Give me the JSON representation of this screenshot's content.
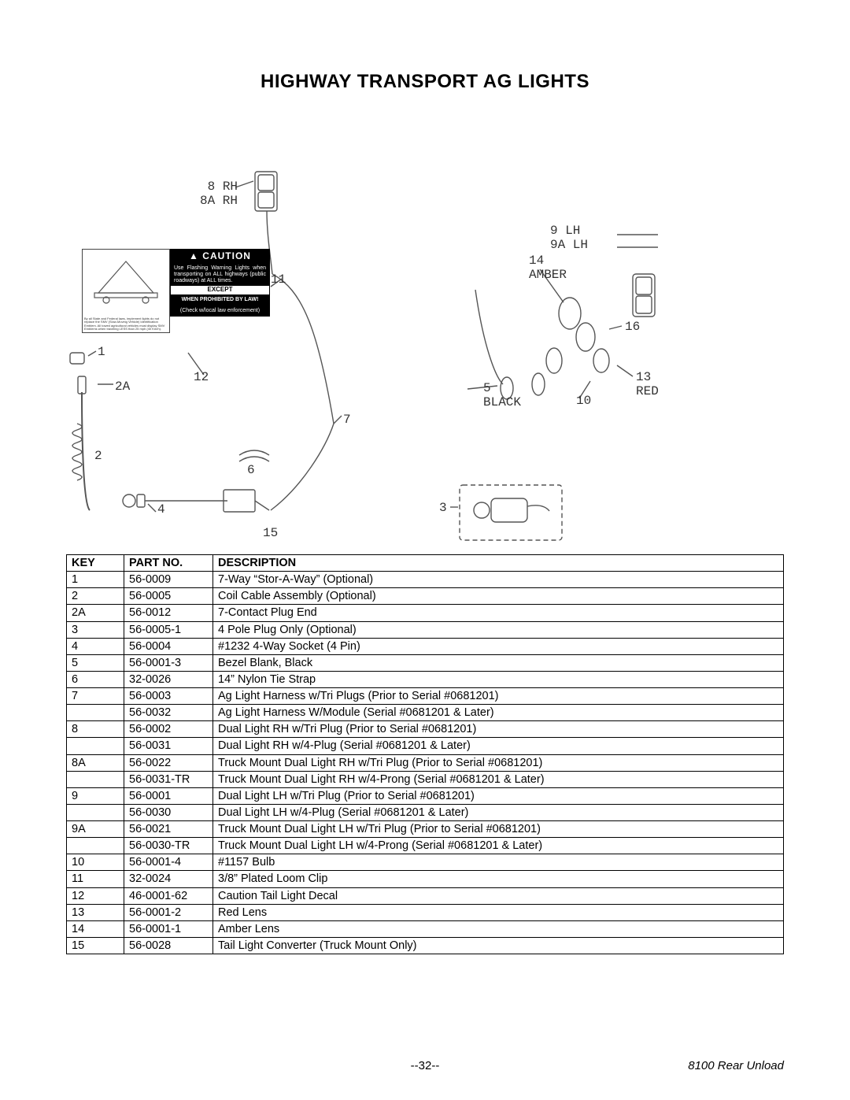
{
  "title": "HIGHWAY TRANSPORT AG LIGHTS",
  "callouts": {
    "c8": "8 RH\n8A RH",
    "c9": "9 LH\n9A LH",
    "c14": "14\nAMBER",
    "c16": "16",
    "c13": "13\nRED",
    "c5": "5\nBLACK",
    "c10": "10",
    "c1": "1",
    "c2a": "2A",
    "c11": "11",
    "c12": "12",
    "c7": "7",
    "c2": "2",
    "c6": "6",
    "c4": "4",
    "c15": "15",
    "c3": "3"
  },
  "caution": {
    "header": "CAUTION",
    "triangle": "▲",
    "line1": "Use Flashing Warning Lights when transporting on ALL highways (public roadways) at ALL times.",
    "except": "EXCEPT",
    "line2": "WHEN PROHIBITED BY LAW!",
    "line3": "(Check w/local law enforcement)"
  },
  "smv_fine_print": "By all State and Federal laws, implement lights do not replace the SMV (Slow-Moving Vehicle) Identification Emblem. All towed agricultural vehicles must display SMV Emblems when traveling LESS than 25 mph (40 Km/h).",
  "columns": [
    "KEY",
    "PART NO.",
    "DESCRIPTION"
  ],
  "rows": [
    [
      "1",
      "56-0009",
      "7-Way “Stor-A-Way” (Optional)"
    ],
    [
      "2",
      "56-0005",
      "Coil Cable Assembly (Optional)"
    ],
    [
      "2A",
      "56-0012",
      "7-Contact Plug End"
    ],
    [
      "3",
      "56-0005-1",
      "4 Pole Plug Only (Optional)"
    ],
    [
      "4",
      "56-0004",
      "#1232 4-Way Socket (4 Pin)"
    ],
    [
      "5",
      "56-0001-3",
      "Bezel Blank, Black"
    ],
    [
      "6",
      "32-0026",
      "14” Nylon Tie Strap"
    ],
    [
      "7",
      "56-0003",
      "Ag Light Harness w/Tri Plugs (Prior to Serial #0681201)"
    ],
    [
      "",
      "56-0032",
      "Ag Light Harness W/Module (Serial #0681201 & Later)"
    ],
    [
      "8",
      "56-0002",
      "Dual Light RH w/Tri Plug (Prior to Serial #0681201)"
    ],
    [
      "",
      "56-0031",
      "Dual Light RH w/4-Plug (Serial #0681201 & Later)"
    ],
    [
      "8A",
      "56-0022",
      "Truck Mount Dual Light RH w/Tri Plug (Prior to Serial #0681201)"
    ],
    [
      "",
      "56-0031-TR",
      "Truck Mount Dual Light RH w/4-Prong (Serial #0681201 & Later)"
    ],
    [
      "9",
      "56-0001",
      "Dual Light LH w/Tri Plug (Prior to Serial #0681201)"
    ],
    [
      "",
      "56-0030",
      "Dual Light LH w/4-Plug (Serial #0681201 & Later)"
    ],
    [
      "9A",
      "56-0021",
      "Truck Mount Dual Light LH w/Tri Plug (Prior to Serial #0681201)"
    ],
    [
      "",
      "56-0030-TR",
      "Truck Mount Dual Light LH w/4-Prong (Serial #0681201 & Later)"
    ],
    [
      "10",
      "56-0001-4",
      "#1157 Bulb"
    ],
    [
      "11",
      "32-0024",
      "3/8” Plated Loom Clip"
    ],
    [
      "12",
      "46-0001-62",
      "Caution Tail Light Decal"
    ],
    [
      "13",
      "56-0001-2",
      "Red Lens"
    ],
    [
      "14",
      "56-0001-1",
      "Amber Lens"
    ],
    [
      "15",
      "56-0028",
      "Tail Light Converter (Truck Mount Only)"
    ]
  ],
  "footer": {
    "page": "--32--",
    "model": "8100 Rear Unload"
  },
  "diagram": {
    "stroke": "#555555",
    "stroke_width": 1.4
  }
}
